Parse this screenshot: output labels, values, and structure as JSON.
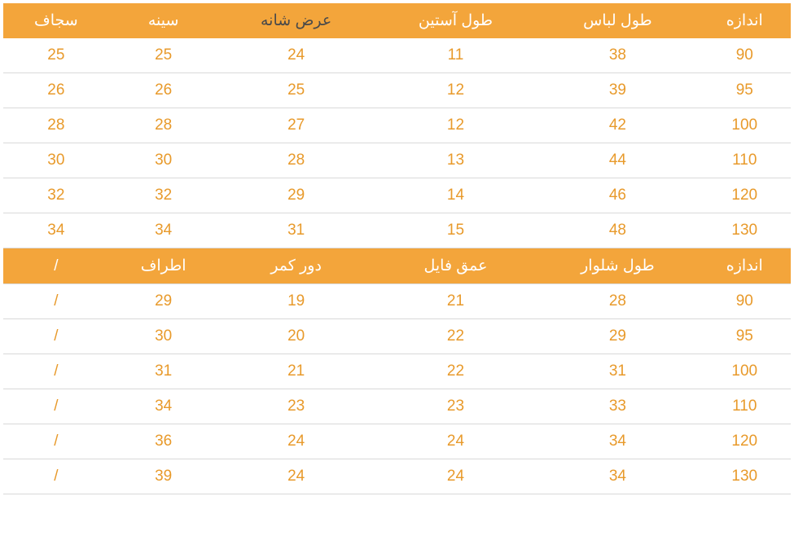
{
  "colors": {
    "headerBg": "#f3a53b",
    "headerText": "#ffffff",
    "rowText": "#e89a2b",
    "rowBorder": "#d9d9d9",
    "darkHeaderText": "#4a4a4a"
  },
  "table1": {
    "headers": [
      "اندازه",
      "طول لباس",
      "طول آستین",
      "عرض شانه",
      "سینه",
      "سجاف"
    ],
    "headerDarkIndexes": [
      3
    ],
    "rows": [
      [
        "90",
        "38",
        "11",
        "24",
        "25",
        "25"
      ],
      [
        "95",
        "39",
        "12",
        "25",
        "26",
        "26"
      ],
      [
        "100",
        "42",
        "12",
        "27",
        "28",
        "28"
      ],
      [
        "110",
        "44",
        "13",
        "28",
        "30",
        "30"
      ],
      [
        "120",
        "46",
        "14",
        "29",
        "32",
        "32"
      ],
      [
        "130",
        "48",
        "15",
        "31",
        "34",
        "34"
      ]
    ]
  },
  "table2": {
    "headers": [
      "اندازه",
      "طول شلوار",
      "عمق فایل",
      "دور کمر",
      "اطراف",
      "/"
    ],
    "headerDarkIndexes": [
      3
    ],
    "rows": [
      [
        "90",
        "28",
        "21",
        "19",
        "29",
        "/"
      ],
      [
        "95",
        "29",
        "22",
        "20",
        "30",
        "/"
      ],
      [
        "100",
        "31",
        "22",
        "21",
        "31",
        "/"
      ],
      [
        "110",
        "33",
        "23",
        "23",
        "34",
        "/"
      ],
      [
        "120",
        "34",
        "24",
        "24",
        "36",
        "/"
      ],
      [
        "130",
        "34",
        "24",
        "24",
        "39",
        "/"
      ]
    ]
  }
}
